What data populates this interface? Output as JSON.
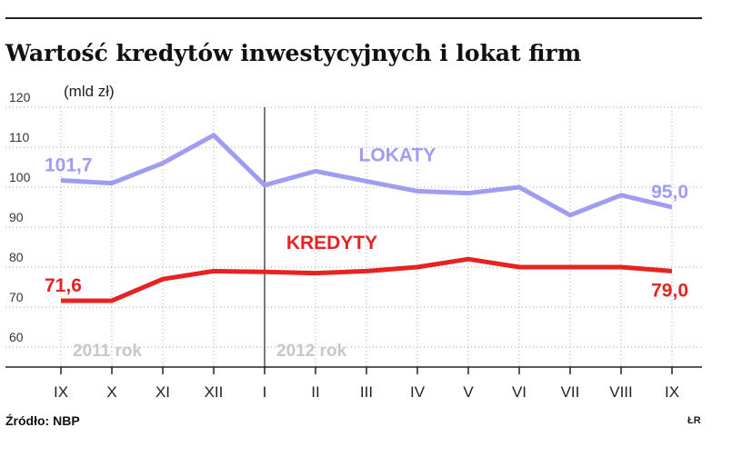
{
  "title": "Wartość kredytów inwestycyjnych i lokat firm",
  "unit_label": "(mld zł)",
  "source": "Źródło: NBP",
  "credit": "ŁR",
  "year_labels": [
    "2011 rok",
    "2012 rok"
  ],
  "colors": {
    "lokaty": "#9f9cf2",
    "kredyty": "#e52421",
    "grid": "#aaaaaa",
    "axis": "#222222",
    "year_label": "#c8c8c8"
  },
  "chart_data": {
    "type": "line",
    "title": "Wartość kredytów inwestycyjnych i lokat firm",
    "ylabel": "(mld zł)",
    "xlabel": "",
    "categories": [
      "IX",
      "X",
      "XI",
      "XII",
      "I",
      "II",
      "III",
      "IV",
      "V",
      "VI",
      "VII",
      "VIII",
      "IX"
    ],
    "ylim": [
      55,
      120
    ],
    "yticks": [
      60,
      70,
      80,
      90,
      100,
      110,
      120
    ],
    "grid": true,
    "series": [
      {
        "name": "LOKATY",
        "values": [
          101.7,
          101,
          106,
          113,
          100.5,
          104,
          101.5,
          99,
          98.5,
          100,
          93,
          98,
          95.0
        ],
        "labels": [
          "101,7",
          "95,0"
        ]
      },
      {
        "name": "KREDYTY",
        "values": [
          71.6,
          71.6,
          77,
          79,
          78.8,
          78.5,
          79,
          80,
          82,
          80,
          80,
          80,
          79.0
        ],
        "labels": [
          "71,6",
          "79,0"
        ]
      }
    ]
  }
}
